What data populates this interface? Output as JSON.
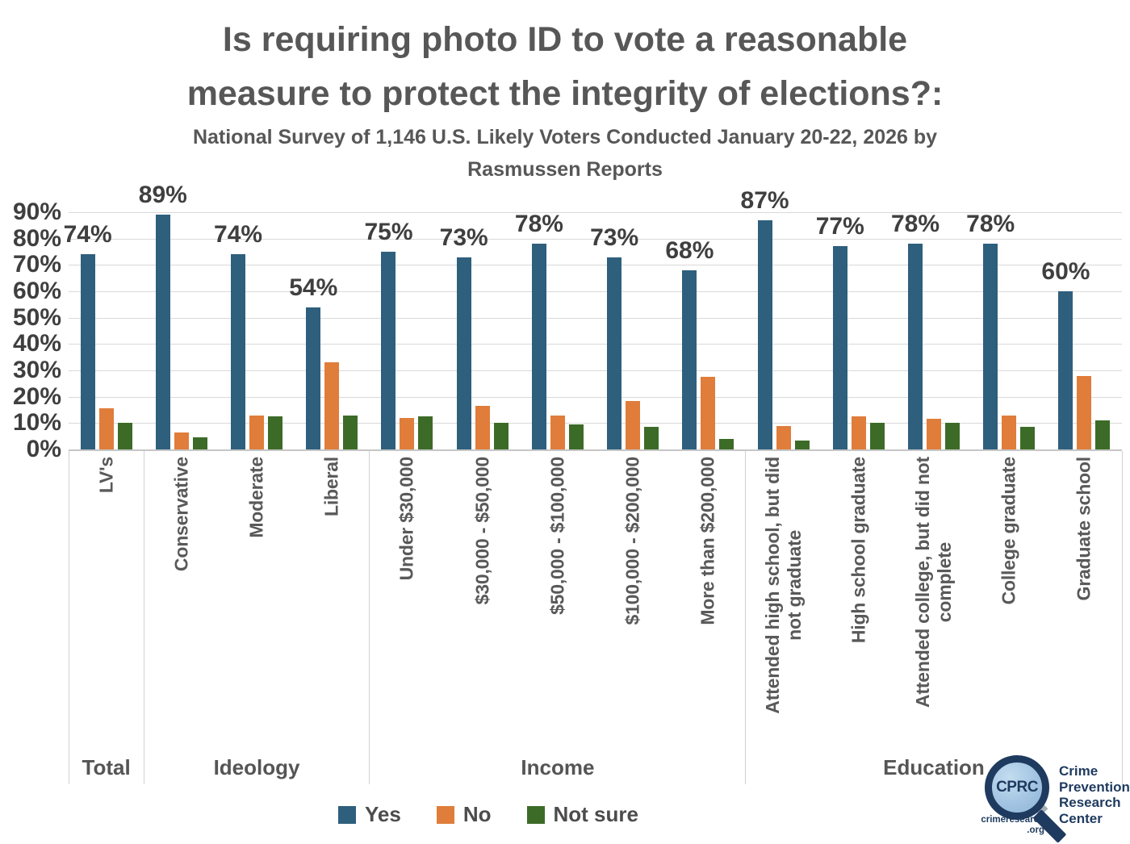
{
  "title": {
    "line1": "Is requiring photo ID to vote a reasonable",
    "line2": "measure to protect the integrity of elections?:",
    "subtitle_line1": "National Survey of 1,146 U.S. Likely Voters Conducted January 20-22, 2026 by",
    "subtitle_line2": "Rasmussen Reports"
  },
  "chart_data": {
    "type": "bar",
    "ylim": [
      0,
      90
    ],
    "y_tick_labels": [
      "90%",
      "80%",
      "70%",
      "60%",
      "50%",
      "40%",
      "30%",
      "20%",
      "10%",
      "0%"
    ],
    "grid": true,
    "legend_position": "bottom",
    "series_names": [
      "Yes",
      "No",
      "Not sure"
    ],
    "series_colors": {
      "yes": "#2E5F7D",
      "no": "#E07D3B",
      "not_sure": "#3C6B28"
    },
    "groups": [
      {
        "name": "Total",
        "categories": [
          {
            "label": "LV's",
            "yes": 74,
            "no": 15.5,
            "not_sure": 10,
            "yes_label": "74%"
          }
        ]
      },
      {
        "name": "Ideology",
        "categories": [
          {
            "label": "Conservative",
            "yes": 89,
            "no": 6.5,
            "not_sure": 4.5,
            "yes_label": "89%"
          },
          {
            "label": "Moderate",
            "yes": 74,
            "no": 13,
            "not_sure": 12.5,
            "yes_label": "74%"
          },
          {
            "label": "Liberal",
            "yes": 54,
            "no": 33,
            "not_sure": 13,
            "yes_label": "54%"
          }
        ]
      },
      {
        "name": "Income",
        "categories": [
          {
            "label": "Under $30,000",
            "yes": 75,
            "no": 12,
            "not_sure": 12.5,
            "yes_label": "75%"
          },
          {
            "label": "$30,000 - $50,000",
            "yes": 73,
            "no": 16.5,
            "not_sure": 10,
            "yes_label": "73%"
          },
          {
            "label": "$50,000 - $100,000",
            "yes": 78,
            "no": 13,
            "not_sure": 9.5,
            "yes_label": "78%"
          },
          {
            "label": "$100,000 - $200,000",
            "yes": 73,
            "no": 18.5,
            "not_sure": 8.5,
            "yes_label": "73%"
          },
          {
            "label": "More than $200,000",
            "yes": 68,
            "no": 27.5,
            "not_sure": 4,
            "yes_label": "68%"
          }
        ]
      },
      {
        "name": "Education",
        "categories": [
          {
            "label": "Attended high school, but did\nnot graduate",
            "yes": 87,
            "no": 9,
            "not_sure": 3.5,
            "yes_label": "87%"
          },
          {
            "label": "High school graduate",
            "yes": 77,
            "no": 12.5,
            "not_sure": 10,
            "yes_label": "77%"
          },
          {
            "label": "Attended college, but did not\ncomplete",
            "yes": 78,
            "no": 11.5,
            "not_sure": 10,
            "yes_label": "78%"
          },
          {
            "label": "College graduate",
            "yes": 78,
            "no": 13,
            "not_sure": 8.5,
            "yes_label": "78%"
          },
          {
            "label": "Graduate school",
            "yes": 60,
            "no": 28,
            "not_sure": 11,
            "yes_label": "60%"
          }
        ]
      }
    ]
  },
  "legend": {
    "items": [
      {
        "key": "yes",
        "label": "Yes"
      },
      {
        "key": "no",
        "label": "No"
      },
      {
        "key": "not_sure",
        "label": "Not sure"
      }
    ]
  },
  "logo": {
    "abbr": "CPRC",
    "name_line1": "Crime",
    "name_line2": "Prevention",
    "name_line3": "Research",
    "name_line4": "Center",
    "url_line1": "crimeresearch",
    "url_line2": ".org"
  }
}
